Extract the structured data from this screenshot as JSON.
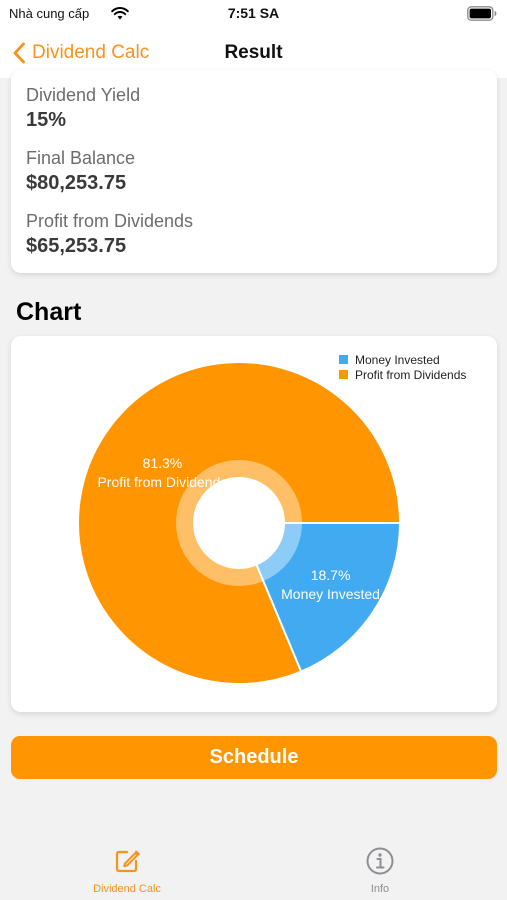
{
  "status_bar": {
    "carrier": "Nhà cung cấp",
    "time": "7:51 SA"
  },
  "nav": {
    "back_label": "Dividend Calc",
    "title": "Result"
  },
  "results": [
    {
      "label": "Dividend Yield",
      "value": "15%"
    },
    {
      "label": "Final Balance",
      "value": "$80,253.75"
    },
    {
      "label": "Profit from Dividends",
      "value": "$65,253.75"
    }
  ],
  "chart_section": {
    "heading": "Chart"
  },
  "chart_data": {
    "type": "pie",
    "categories": [
      "Money Invested",
      "Profit from Dividends"
    ],
    "values": [
      18.7,
      81.3
    ],
    "value_labels": [
      "18.7%",
      "81.3%"
    ],
    "colors": [
      "#42aaf0",
      "#ff9500"
    ],
    "legend": {
      "placement": "top-right",
      "entries": [
        "Money Invested",
        "Profit from Dividends"
      ]
    },
    "donut_hole": true
  },
  "schedule_button": {
    "label": "Schedule"
  },
  "tabs": [
    {
      "label": "Dividend Calc",
      "icon": "edit-icon",
      "active": true,
      "color": "#f7931e"
    },
    {
      "label": "Info",
      "icon": "info-icon",
      "active": false,
      "color": "#8e8e93"
    }
  ]
}
